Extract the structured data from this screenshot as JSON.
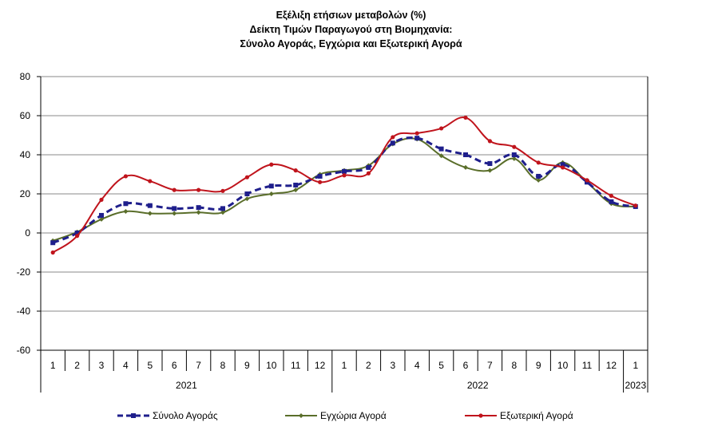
{
  "chart_data": {
    "type": "line",
    "title": [
      "Εξέλιξη ετήσιων μεταβολών (%)",
      "Δείκτη Τιμών Παραγωγού στη Βιομηχανία:",
      "Σύνολο Αγοράς, Εγχώρια και Εξωτερική Αγορά"
    ],
    "x": [
      "1",
      "2",
      "3",
      "4",
      "5",
      "6",
      "7",
      "8",
      "9",
      "10",
      "11",
      "12",
      "1",
      "2",
      "3",
      "4",
      "5",
      "6",
      "7",
      "8",
      "9",
      "10",
      "11",
      "12",
      "1"
    ],
    "year_groups": [
      {
        "label": "2021",
        "count": 12
      },
      {
        "label": "2022",
        "count": 12
      },
      {
        "label": "2023",
        "count": 1
      }
    ],
    "ylim": [
      -60,
      80
    ],
    "yticks": [
      -60,
      -40,
      -20,
      0,
      20,
      40,
      60,
      80
    ],
    "grid": true,
    "legend_position": "bottom",
    "series": [
      {
        "name": "Σύνολο Αγοράς",
        "color": "#1f1f8c",
        "style": "dashed",
        "marker": "square",
        "values": [
          -5,
          0,
          9,
          15,
          14,
          12.5,
          13,
          12.5,
          20,
          24,
          24.5,
          29,
          31.5,
          33.5,
          46,
          48.5,
          43,
          40,
          35.5,
          40,
          29,
          35,
          26,
          16,
          13.5
        ]
      },
      {
        "name": "Εγχώρια Αγορά",
        "color": "#5a6e2a",
        "style": "solid",
        "marker": "diamond",
        "values": [
          -4,
          0.5,
          7,
          11,
          10,
          10,
          10.5,
          10.5,
          17.5,
          20,
          22,
          30,
          32,
          34.5,
          45.5,
          48,
          39.5,
          33.5,
          32,
          38,
          27,
          36,
          26,
          15,
          13.5
        ]
      },
      {
        "name": "Εξωτερική Αγορά",
        "color": "#c0141c",
        "style": "solid",
        "marker": "circle",
        "values": [
          -10,
          -1.5,
          17,
          29,
          26.5,
          22,
          22,
          21.5,
          28.5,
          35,
          32,
          26,
          29.5,
          30.5,
          49,
          51,
          53.5,
          59,
          47,
          44,
          36,
          33.5,
          27,
          19,
          14
        ]
      }
    ]
  }
}
